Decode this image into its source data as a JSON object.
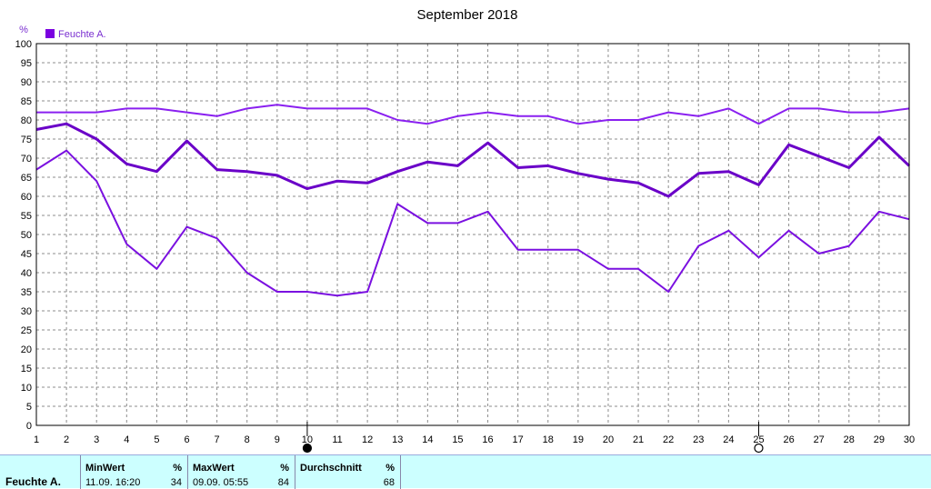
{
  "chart_data": {
    "type": "line",
    "title": "September 2018",
    "ylabel": "%",
    "x": [
      1,
      2,
      3,
      4,
      5,
      6,
      7,
      8,
      9,
      10,
      11,
      12,
      13,
      14,
      15,
      16,
      17,
      18,
      19,
      20,
      21,
      22,
      23,
      24,
      25,
      26,
      27,
      28,
      29,
      30
    ],
    "ylim": [
      0,
      100
    ],
    "xlim": [
      1,
      30
    ],
    "y_ticks": [
      0,
      5,
      10,
      15,
      20,
      25,
      30,
      35,
      40,
      45,
      50,
      55,
      60,
      65,
      70,
      75,
      80,
      85,
      90,
      95,
      100
    ],
    "grid": true,
    "legend": [
      {
        "label": "Feuchte A.",
        "color": "#7a00e0"
      }
    ],
    "legend_position": "top-left",
    "series": [
      {
        "name": "Feuchte A.",
        "role": "max",
        "color": "#8a20f0",
        "width": 2,
        "values": [
          82,
          82,
          82,
          83,
          83,
          82,
          81,
          83,
          84,
          83,
          83,
          83,
          80,
          79,
          81,
          82,
          81,
          81,
          79,
          80,
          80,
          82,
          81,
          83,
          79,
          83,
          83,
          82,
          82,
          83
        ]
      },
      {
        "name": "Feuchte A.",
        "role": "avg",
        "color": "#6a00c8",
        "width": 3,
        "values": [
          77.5,
          79,
          75,
          68.5,
          66.5,
          74.5,
          67,
          66.5,
          65.5,
          62,
          64,
          63.5,
          66.5,
          69,
          68,
          74,
          67.5,
          68,
          66,
          64.5,
          63.5,
          60,
          66,
          66.5,
          63,
          73.5,
          70.5,
          67.5,
          75.5,
          68
        ]
      },
      {
        "name": "Feuchte A.",
        "role": "min",
        "color": "#7a10e0",
        "width": 2,
        "values": [
          67,
          72,
          64,
          47.5,
          41,
          52,
          49,
          40,
          35,
          35,
          34,
          35,
          58,
          53,
          53,
          56,
          46,
          46,
          46,
          41,
          41,
          35,
          47,
          51,
          44,
          51,
          45,
          47,
          56,
          54
        ]
      }
    ],
    "moon_phases": [
      {
        "day": 10,
        "phase": "new moon",
        "symbol": "●"
      },
      {
        "day": 25,
        "phase": "full moon",
        "symbol": "○"
      }
    ]
  },
  "stats": {
    "row_label": "Feuchte A.",
    "unit": "%",
    "min_header": "MinWert",
    "min_time": "11.09.  16:20",
    "min_value": "34",
    "max_header": "MaxWert",
    "max_time": "09.09.  05:55",
    "max_value": "84",
    "avg_header": "Durchschnitt",
    "avg_value": "68"
  }
}
